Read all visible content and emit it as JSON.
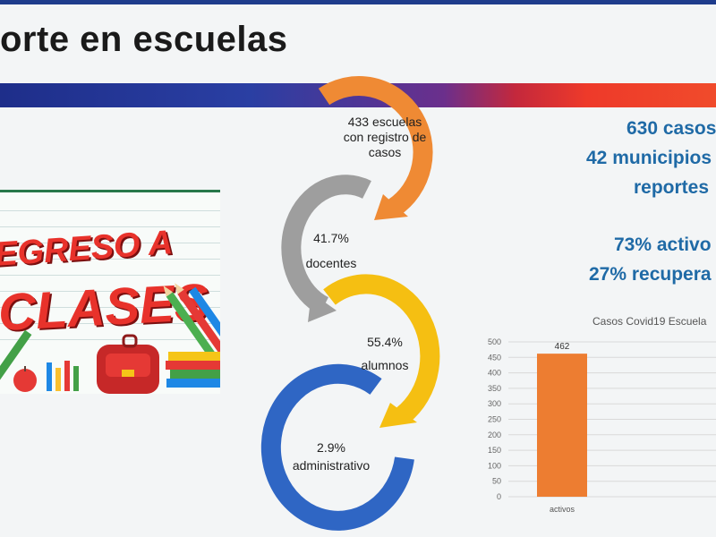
{
  "header": {
    "title": "orte en escuelas"
  },
  "banner": {
    "line1": "EGRESO A",
    "line2": "CLASES"
  },
  "cycle": [
    {
      "text_lines": [
        "433 escuelas",
        "con registro de",
        "casos"
      ],
      "color": "#ef8a34"
    },
    {
      "text_lines": [
        "41.7%",
        "docentes"
      ],
      "color": "#9e9e9e"
    },
    {
      "text_lines": [
        "55.4%",
        "alumnos"
      ],
      "color": "#f5bf12"
    },
    {
      "text_lines": [
        "2.9%",
        "administrativo"
      ],
      "color": "#2f66c4"
    }
  ],
  "stats": {
    "line1": "630 casos",
    "line2": "42 municipios",
    "line3": "reportes",
    "line4": "73% activo",
    "line5": "27% recupera"
  },
  "chart_data": {
    "type": "bar",
    "title": "Casos Covid19 Escuela",
    "categories": [
      "activos"
    ],
    "values": [
      462
    ],
    "data_labels": [
      "462"
    ],
    "yticks": [
      0,
      50,
      100,
      150,
      200,
      250,
      300,
      350,
      400,
      450,
      500
    ],
    "ylim": [
      0,
      500
    ],
    "grid": true,
    "bar_color": "#ed7d31"
  }
}
